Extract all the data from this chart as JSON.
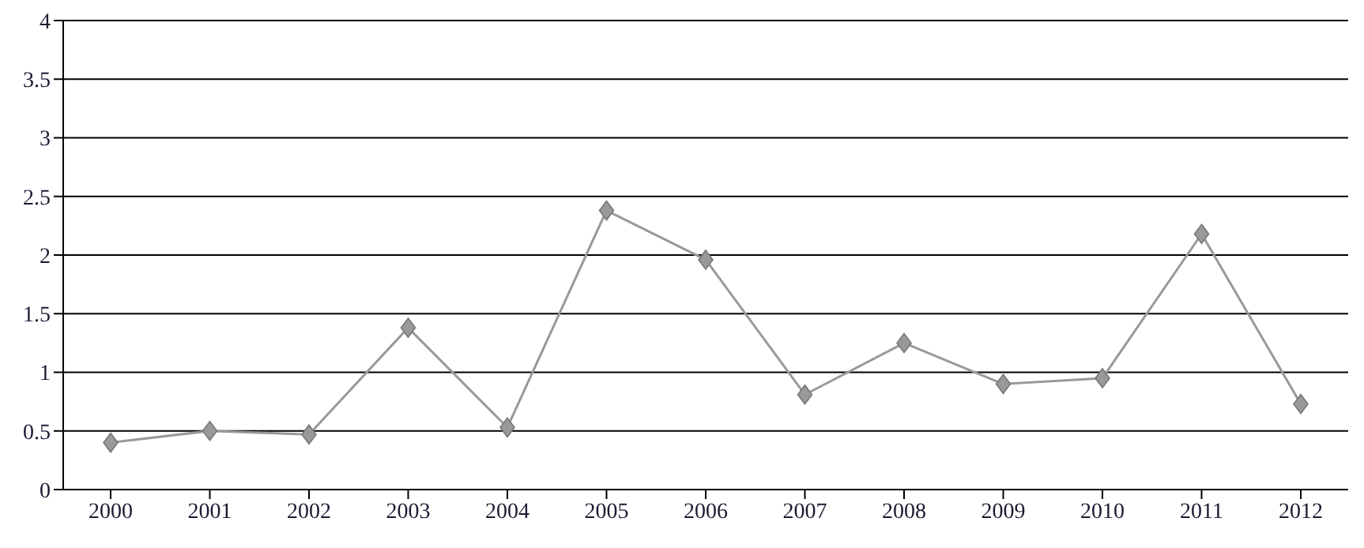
{
  "chart_data": {
    "type": "line",
    "categories": [
      "2000",
      "2001",
      "2002",
      "2003",
      "2004",
      "2005",
      "2006",
      "2007",
      "2008",
      "2009",
      "2010",
      "2011",
      "2012"
    ],
    "series": [
      {
        "color": "#999999",
        "values": [
          0.4,
          0.5,
          0.47,
          1.38,
          0.53,
          2.38,
          1.96,
          0.81,
          1.25,
          0.9,
          0.95,
          2.18,
          0.73
        ]
      }
    ],
    "ylim": [
      0,
      4
    ],
    "yticks": [
      0,
      0.5,
      1,
      1.5,
      2,
      2.5,
      3,
      3.5,
      4
    ],
    "grid": "y",
    "marker": "diamond",
    "legend": false
  }
}
